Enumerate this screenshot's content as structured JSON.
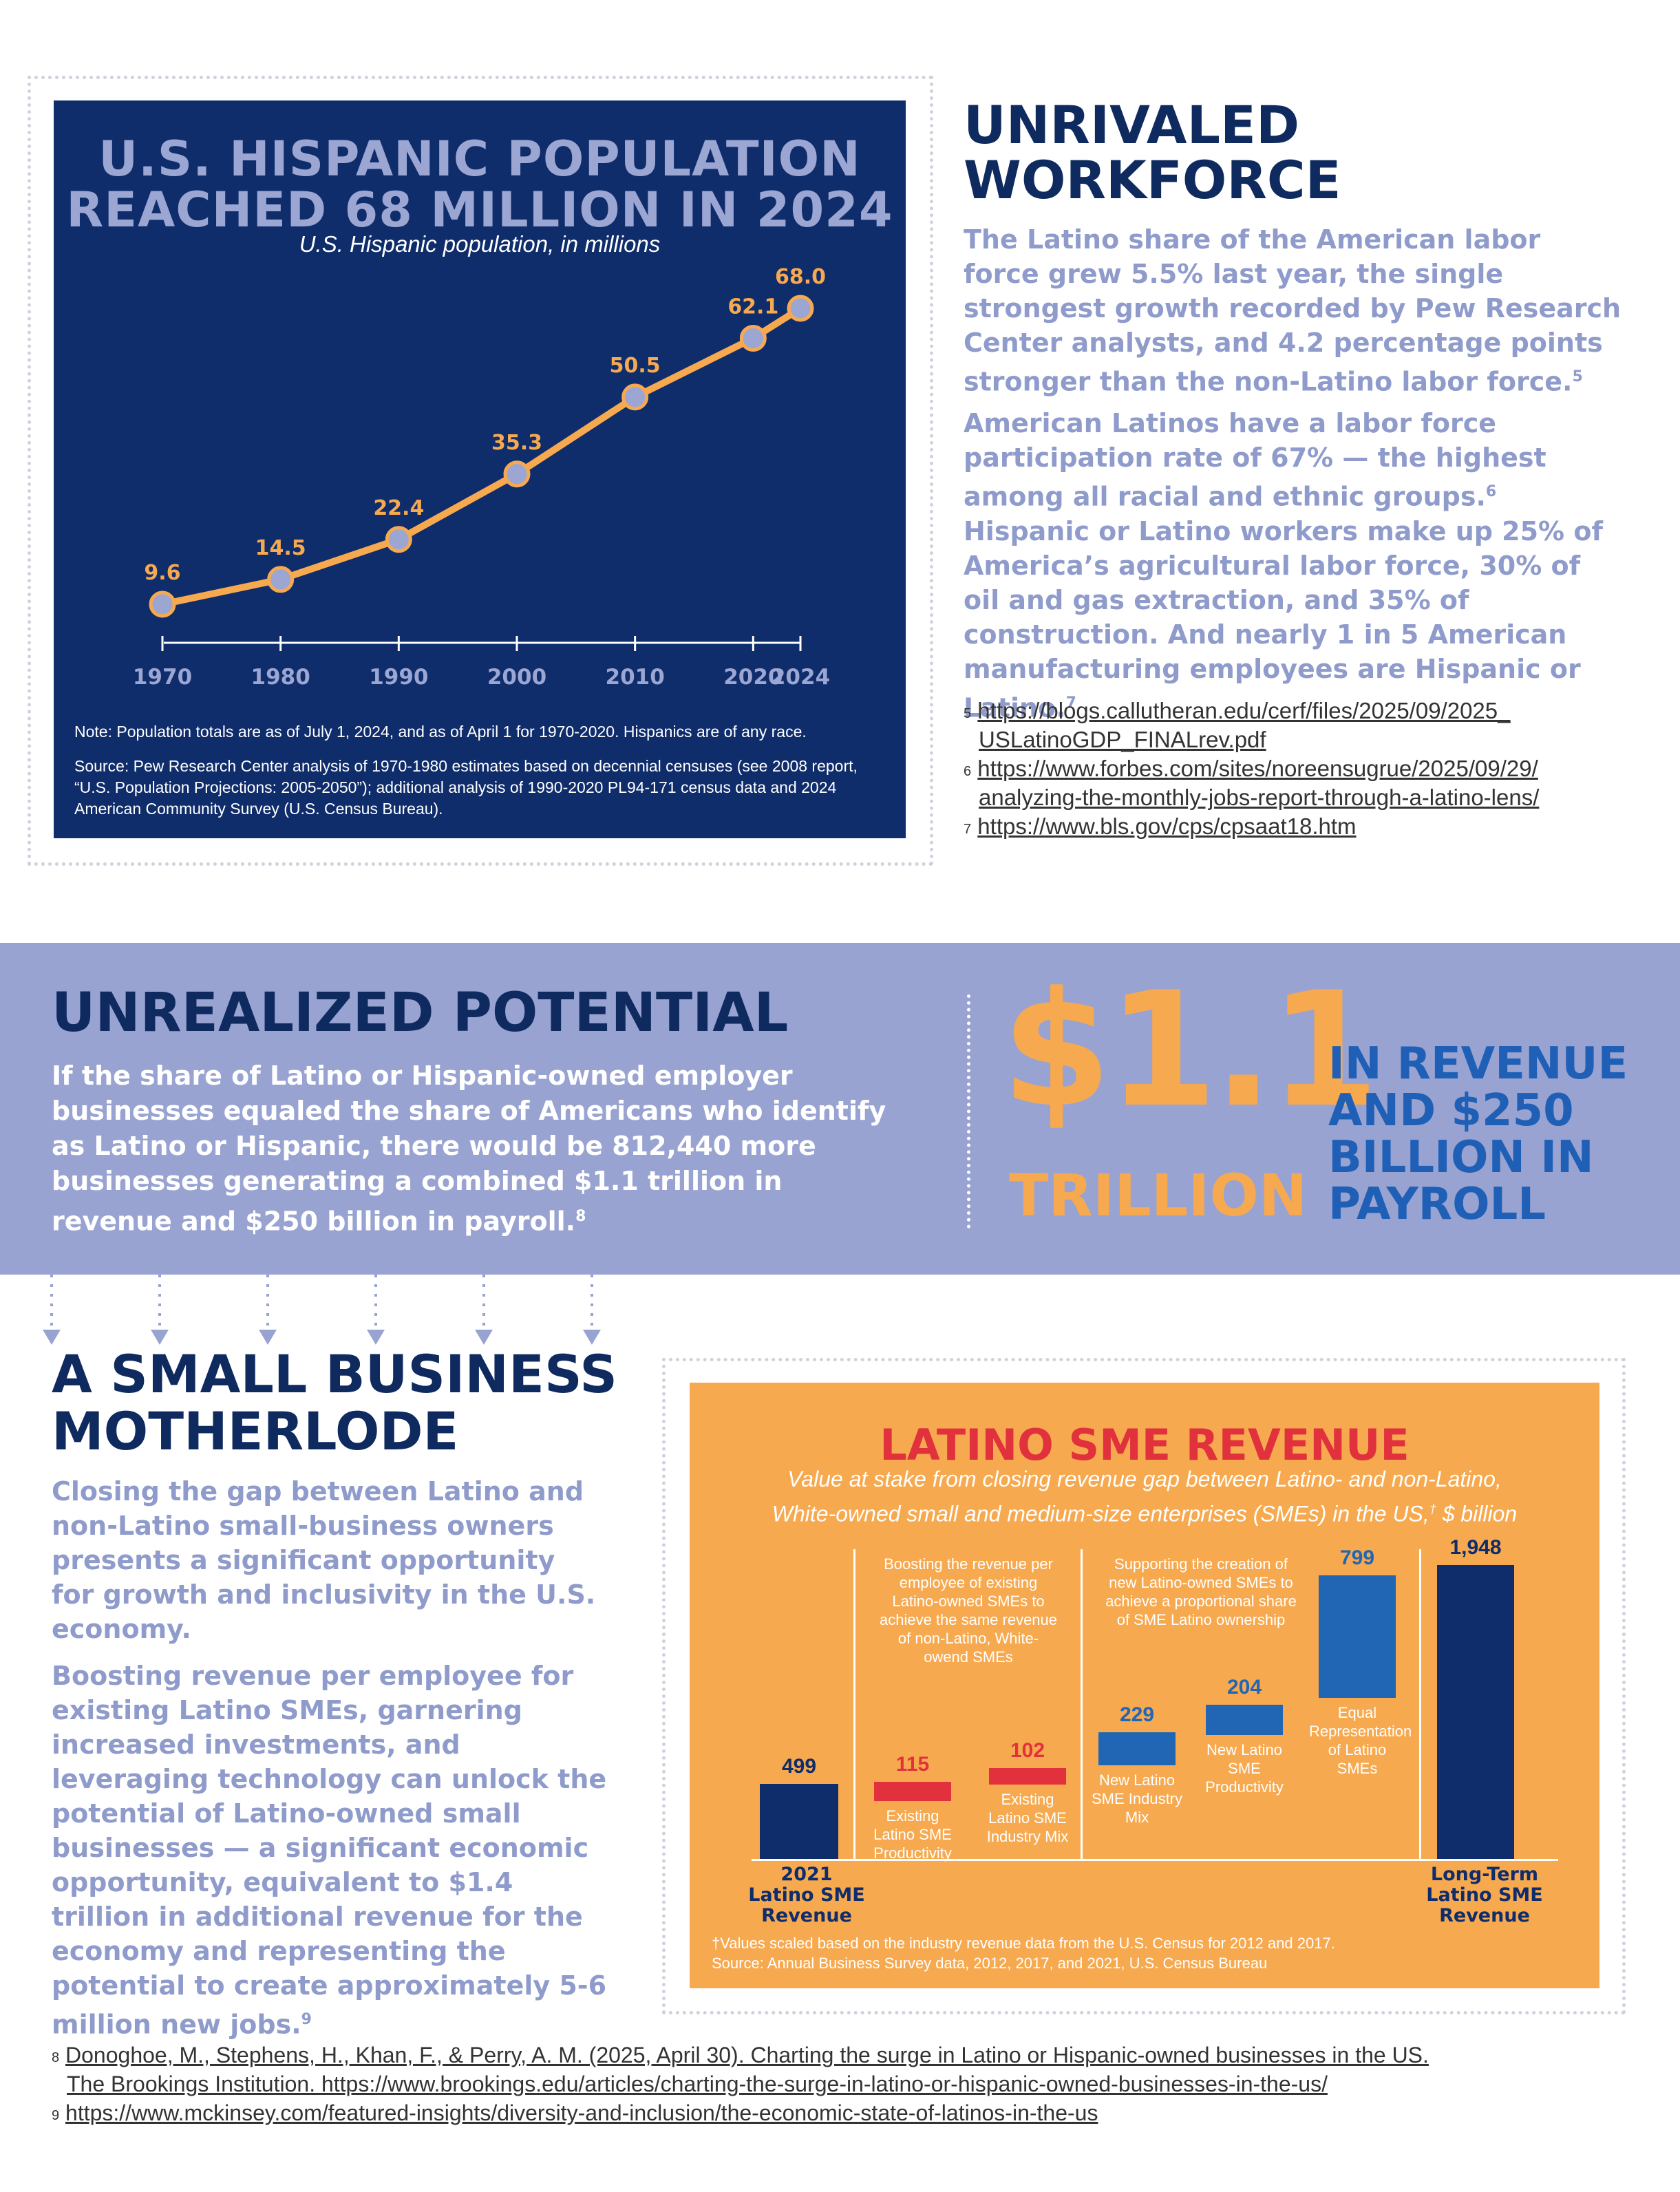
{
  "population_chart": {
    "title_line1": "U.S. HISPANIC POPULATION",
    "title_line2": "REACHED 68 MILLION IN 2024",
    "subtitle": "U.S. Hispanic population, in millions",
    "note": "Note: Population totals are as of July 1, 2024, and as of April 1 for 1970-2020. Hispanics are of any race.",
    "source": "Source: Pew Research Center analysis of 1970-1980 estimates based on decennial censuses (see 2008 report, “U.S. Population Projections: 2005-2050”); additional analysis of 1990-2020 PL94-171 census data and 2024 American Community Survey (U.S. Census Bureau).",
    "colors": {
      "background": "#0f2c6b",
      "line": "#f7a94f",
      "marker": "#9ba6d3",
      "title": "#9ba6d3"
    }
  },
  "chart_data": [
    {
      "type": "line",
      "title": "U.S. HISPANIC POPULATION REACHED 68 MILLION IN 2024",
      "subtitle": "U.S. Hispanic population, in millions",
      "xlabel": "",
      "ylabel": "",
      "x": [
        "1970",
        "1980",
        "1990",
        "2000",
        "2010",
        "2020",
        "2024"
      ],
      "x_numeric": [
        1970,
        1980,
        1990,
        2000,
        2010,
        2020,
        2024
      ],
      "values": [
        9.6,
        14.5,
        22.4,
        35.3,
        50.5,
        62.1,
        68.0
      ],
      "labels": [
        "9.6",
        "14.5",
        "22.4",
        "35.3",
        "50.5",
        "62.1",
        "68.0"
      ],
      "xlim": [
        1970,
        2024
      ],
      "ylim": [
        0,
        75
      ],
      "grid": false
    },
    {
      "type": "bar",
      "title": "LATINO SME REVENUE",
      "subtitle": "Value at stake from closing revenue gap between Latino- and non-Latino, White-owned small and medium-size enterprises (SMEs) in the US, $ billion",
      "categories": [
        "2021 Latino SME Revenue",
        "Existing Latino SME Productivity",
        "Existing Latino SME Industry Mix",
        "New Latino SME Industry Mix",
        "New Latino SME Productivity",
        "Equal Representation of Latino SMEs",
        "Long-Term Latino SME Revenue"
      ],
      "values": [
        499,
        115,
        102,
        229,
        204,
        799,
        1948
      ],
      "labels": [
        "499",
        "115",
        "102",
        "229",
        "204",
        "799",
        "1,948"
      ],
      "kind": [
        "total",
        "increment",
        "increment",
        "increment",
        "increment",
        "increment",
        "total"
      ],
      "ylim": [
        0,
        2000
      ]
    }
  ],
  "workforce": {
    "heading_line1": "UNRIVALED",
    "heading_line2": "WORKFORCE",
    "para1": "The Latino share of the American labor force grew 5.5% last year, the single strongest growth recorded by Pew Research Center analysts, and 4.2 percentage points stronger than the non-Latino labor force.",
    "para1_ref": "5",
    "para2": "American Latinos have a labor force participation rate of 67% — the highest among all racial and ethnic groups.",
    "para2_ref": "6",
    "para2b": " Hispanic or Latino workers make up 25% of America’s agricultural labor force, 30% of oil and gas extraction, and 35% of construction. And nearly 1 in 5 American manufacturing employees are Hispanic or Latino.",
    "para2b_ref": "7",
    "footnotes": [
      {
        "num": "5",
        "line1": "https://blogs.callutheran.edu/cerf/files/2025/09/2025_",
        "line2": "USLatinoGDP_FINALrev.pdf"
      },
      {
        "num": "6",
        "line1": "https://www.forbes.com/sites/noreensugrue/2025/09/29/",
        "line2": "analyzing-the-monthly-jobs-report-through-a-latino-lens/"
      },
      {
        "num": "7",
        "line1": "https://www.bls.gov/cps/cpsaat18.htm",
        "line2": ""
      }
    ]
  },
  "potential": {
    "heading": "UNREALIZED POTENTIAL",
    "body": "If the share of Latino or Hispanic-owned employer businesses equaled the share of Americans who identify as Latino or Hispanic, there would be 812,440 more businesses generating a combined $1.1 trillion in revenue and $250 billion in payroll.",
    "body_ref": "8",
    "big_number": "$1.1",
    "big_unit": "TRILLION",
    "side_line1": "IN REVENUE",
    "side_line2": "AND $250",
    "side_line3": "BILLION IN",
    "side_line4": "PAYROLL",
    "colors": {
      "band": "#98a3d2",
      "accent": "#f7a94f",
      "navy": "#0e2a5e"
    }
  },
  "motherlode": {
    "heading_line1": "A SMALL BUSINESS",
    "heading_line2": "MOTHERLODE",
    "para1": "Closing the gap between Latino and non-Latino small-business owners presents a significant opportunity for growth and inclusivity in the U.S. economy.",
    "para2": "Boosting revenue per employee for existing Latino SMEs, garnering increased investments, and leveraging technology can unlock the potential of Latino-owned small businesses — a significant economic opportunity, equivalent to $1.4 trillion in additional revenue for the economy and representing the potential to create approximately 5-6 million new jobs.",
    "para2_ref": "9"
  },
  "sme_chart": {
    "title": "LATINO SME REVENUE",
    "subtitle_line1": "Value at stake from closing revenue gap between Latino- and non-Latino,",
    "subtitle_line2": "White-owned small and medium-size enterprises (SMEs) in the US,",
    "subtitle_dagger": "†",
    "subtitle_line2_end": " $ billion",
    "group1_note": "Boosting the revenue per employee of existing Latino-owned SMEs to achieve the same revenue of non-Latino, White-owend SMEs",
    "group2_note": "Supporting the creation of new Latino-owned SMEs to achieve a proportional share of SME Latino ownership",
    "footnote1": "†Values scaled based on the industry revenue data from the U.S. Census for 2012 and 2017.",
    "footnote2": "Source: Annual Business Survey data, 2012, 2017, and 2021, U.S. Census Bureau",
    "bar_labels": {
      "b0_line1": "2021",
      "b0_line2": "Latino SME",
      "b0_line3": "Revenue",
      "b1": "Existing Latino SME Productivity",
      "b2": "Existing Latino SME Industry Mix",
      "b3": "New Latino SME Industry Mix",
      "b4": "New Latino SME Productivity",
      "b5": "Equal Representation of Latino SMEs",
      "b6_line1": "Long-Term",
      "b6_line2": "Latino SME",
      "b6_line3": "Revenue"
    },
    "colors": {
      "background": "#f7a94f",
      "total": "#0f2c6b",
      "existing": "#e0313d",
      "new": "#2166b5",
      "title": "#e0313d"
    }
  },
  "bottom_footnotes": {
    "fn8_num": "8",
    "fn8_line1": "Donoghoe, M., Stephens, H., Khan, F., & Perry, A. M. (2025, April 30). Charting the surge in Latino or Hispanic-owned businesses in the US.",
    "fn8_line2": "The Brookings Institution. https://www.brookings.edu/articles/charting-the-surge-in-latino-or-hispanic-owned-businesses-in-the-us/",
    "fn9_num": "9",
    "fn9_line1": "https://www.mckinsey.com/featured-insights/diversity-and-inclusion/the-economic-state-of-latinos-in-the-us"
  }
}
